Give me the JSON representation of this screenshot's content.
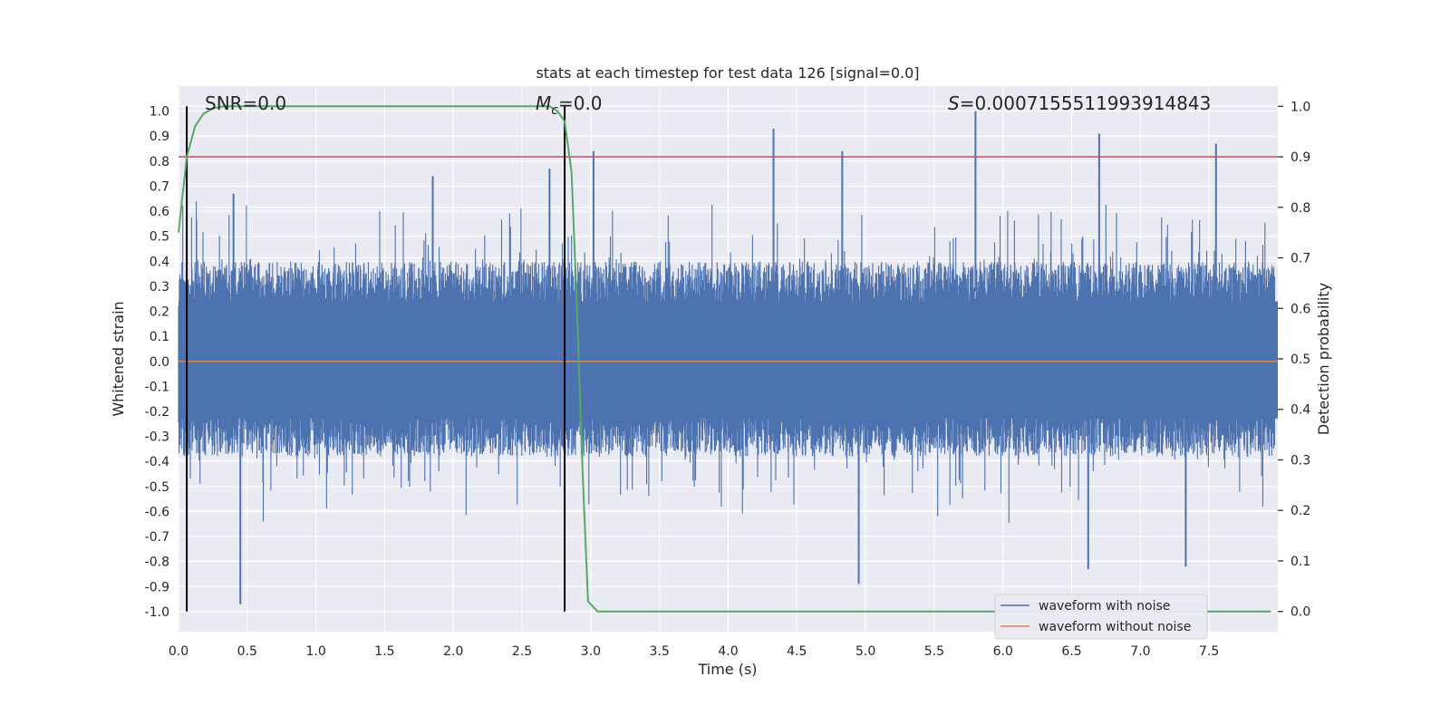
{
  "chart_data": {
    "type": "line",
    "title": "stats at each timestep for test data 126 [signal=0.0]",
    "xlabel": "Time (s)",
    "ylabel": "Whitened strain",
    "ylabel_right": "Detection probability",
    "xlim": [
      0.0,
      8.0
    ],
    "ylim": [
      -1.08,
      1.1
    ],
    "ylim_right": [
      -0.04,
      1.04
    ],
    "x_ticks": [
      0.0,
      0.5,
      1.0,
      1.5,
      2.0,
      2.5,
      3.0,
      3.5,
      4.0,
      4.5,
      5.0,
      5.5,
      6.0,
      6.5,
      7.0,
      7.5
    ],
    "x_tick_labels": [
      "0.0",
      "0.5",
      "1.0",
      "1.5",
      "2.0",
      "2.5",
      "3.0",
      "3.5",
      "4.0",
      "4.5",
      "5.0",
      "5.5",
      "6.0",
      "6.5",
      "7.0",
      "7.5"
    ],
    "y_ticks": [
      1.0,
      0.9,
      0.8,
      0.7,
      0.6,
      0.5,
      0.4,
      0.3,
      0.2,
      0.1,
      0.0,
      -0.1,
      -0.2,
      -0.3,
      -0.4,
      -0.5,
      -0.6,
      -0.7,
      -0.8,
      -0.9,
      -1.0
    ],
    "y_tick_labels": [
      "1.0",
      "0.9",
      "0.8",
      "0.7",
      "0.6",
      "0.5",
      "0.4",
      "0.3",
      "0.2",
      "0.1",
      "0.0",
      "-0.1",
      "-0.2",
      "-0.3",
      "-0.4",
      "-0.5",
      "-0.6",
      "-0.7",
      "-0.8",
      "-0.9",
      "-1.0"
    ],
    "y_right_ticks": [
      1.0,
      0.9,
      0.8,
      0.7,
      0.6,
      0.5,
      0.4,
      0.3,
      0.2,
      0.1,
      0.0
    ],
    "y_right_tick_labels": [
      "1.0",
      "0.9",
      "0.8",
      "0.7",
      "0.6",
      "0.5",
      "0.4",
      "0.3",
      "0.2",
      "0.1",
      "0.0"
    ],
    "grid": true,
    "annotations": {
      "snr": "SNR=0.0",
      "mc_symbol": "M",
      "mc_subscript": "c",
      "mc_value": "=0.0",
      "s_symbol": "S",
      "s_value": "=0.0007155511993914843"
    },
    "series": [
      {
        "name": "waveform with noise",
        "color": "#4c72b0",
        "envelope_upper": 0.4,
        "envelope_lower": -0.38,
        "peaks": [
          {
            "x": 0.45,
            "y": -0.97
          },
          {
            "x": 0.4,
            "y": 0.67
          },
          {
            "x": 1.85,
            "y": 0.74
          },
          {
            "x": 2.7,
            "y": 0.77
          },
          {
            "x": 3.02,
            "y": 0.84
          },
          {
            "x": 4.33,
            "y": 0.93
          },
          {
            "x": 4.83,
            "y": 0.84
          },
          {
            "x": 4.95,
            "y": -0.89
          },
          {
            "x": 5.8,
            "y": 1.0
          },
          {
            "x": 6.7,
            "y": 0.91
          },
          {
            "x": 6.62,
            "y": -0.83
          },
          {
            "x": 7.55,
            "y": 0.87
          },
          {
            "x": 7.33,
            "y": -0.82
          }
        ]
      },
      {
        "name": "waveform without noise",
        "color": "#dd8452",
        "constant": 0.0
      },
      {
        "name": "detection probability",
        "color": "#55a868",
        "axis": "right",
        "x": [
          0.0,
          0.06,
          0.12,
          0.18,
          0.25,
          0.33,
          0.42,
          0.55,
          1.0,
          1.5,
          2.0,
          2.5,
          2.7,
          2.76,
          2.81,
          2.86,
          2.9,
          2.94,
          2.98,
          3.05,
          3.2,
          3.5,
          4.0,
          5.0,
          6.0,
          7.0,
          7.95
        ],
        "y": [
          0.75,
          0.9,
          0.96,
          0.985,
          0.996,
          1.0,
          1.0,
          1.0,
          1.0,
          1.0,
          1.0,
          1.0,
          1.0,
          0.99,
          0.97,
          0.87,
          0.6,
          0.28,
          0.02,
          0.0,
          0.0,
          0.0,
          0.0,
          0.0,
          0.0,
          0.0,
          0.0
        ]
      }
    ],
    "hlines": [
      {
        "name": "threshold",
        "axis": "right",
        "y": 0.9,
        "color": "#c44e52"
      }
    ],
    "vlines": [
      {
        "name": "start-marker",
        "x": 0.06,
        "color": "#000000"
      },
      {
        "name": "detection-marker",
        "x": 2.81,
        "color": "#000000"
      }
    ],
    "legend": {
      "position": "bottom-right",
      "entries": [
        {
          "label": "waveform with noise",
          "color": "#4c72b0"
        },
        {
          "label": "waveform without noise",
          "color": "#dd8452"
        }
      ]
    }
  }
}
